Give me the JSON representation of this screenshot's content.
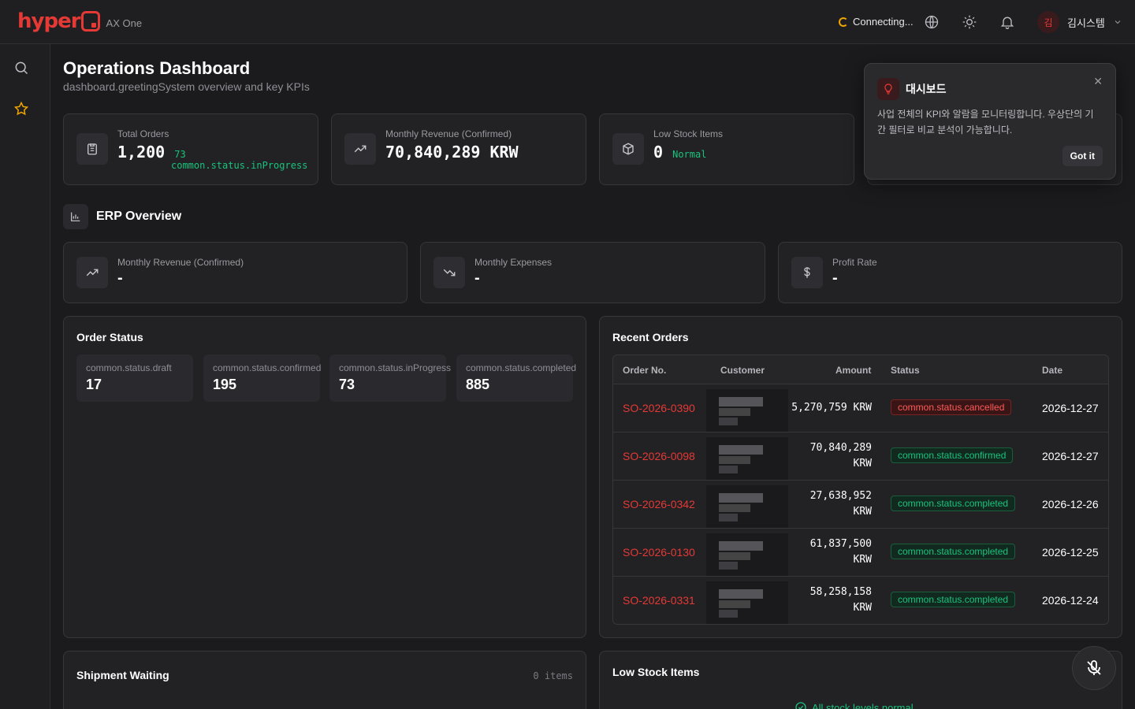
{
  "header": {
    "logo_text": "hyper",
    "app_name": "AX One",
    "connection_status": "Connecting...",
    "user_initial": "김",
    "user_name": "김시스템"
  },
  "page": {
    "title": "Operations Dashboard",
    "subtitle": "dashboard.greetingSystem overview and key KPIs"
  },
  "kpis": {
    "total_orders": {
      "label": "Total Orders",
      "value": "1,200",
      "extra_count": "73",
      "extra_label": "common.status.inProgress"
    },
    "monthly_revenue": {
      "label": "Monthly Revenue (Confirmed)",
      "value": "70,840,289 KRW"
    },
    "low_stock": {
      "label": "Low Stock Items",
      "value": "0",
      "extra_label": "Normal"
    }
  },
  "erp": {
    "title": "ERP Overview",
    "revenue": {
      "label": "Monthly Revenue (Confirmed)",
      "value": "-"
    },
    "expenses": {
      "label": "Monthly Expenses",
      "value": "-"
    },
    "profit": {
      "label": "Profit Rate",
      "value": "-"
    }
  },
  "order_status": {
    "title": "Order Status",
    "items": [
      {
        "label": "common.status.draft",
        "value": "17"
      },
      {
        "label": "common.status.confirmed",
        "value": "195"
      },
      {
        "label": "common.status.inProgress",
        "value": "73"
      },
      {
        "label": "common.status.completed",
        "value": "885"
      }
    ]
  },
  "recent_orders": {
    "title": "Recent Orders",
    "columns": [
      "Order No.",
      "Customer",
      "Amount",
      "Status",
      "Date"
    ],
    "rows": [
      {
        "order": "SO-2026-0390",
        "amount": "5,270,759 KRW",
        "status": "common.status.cancelled",
        "date": "2026-12-27"
      },
      {
        "order": "SO-2026-0098",
        "amount_line1": "70,840,289",
        "amount_line2": "KRW",
        "status": "common.status.confirmed",
        "date": "2026-12-27"
      },
      {
        "order": "SO-2026-0342",
        "amount_line1": "27,638,952",
        "amount_line2": "KRW",
        "status": "common.status.completed",
        "date": "2026-12-26"
      },
      {
        "order": "SO-2026-0130",
        "amount_line1": "61,837,500",
        "amount_line2": "KRW",
        "status": "common.status.completed",
        "date": "2026-12-25"
      },
      {
        "order": "SO-2026-0331",
        "amount_line1": "58,258,158",
        "amount_line2": "KRW",
        "status": "common.status.completed",
        "date": "2026-12-24"
      }
    ]
  },
  "shipment": {
    "title": "Shipment Waiting",
    "count": "0 items"
  },
  "low_stock_panel": {
    "title": "Low Stock Items",
    "message": "All stock levels normal"
  },
  "tour": {
    "title": "대시보드",
    "body": "사업 전체의 KPI와 알람을 모니터링합니다. 우상단의 기간 필터로 비교 분석이 가능합니다.",
    "button": "Got it"
  },
  "colors": {
    "accent": "#e53935",
    "success": "#19c37d",
    "warning": "#f0a500"
  }
}
